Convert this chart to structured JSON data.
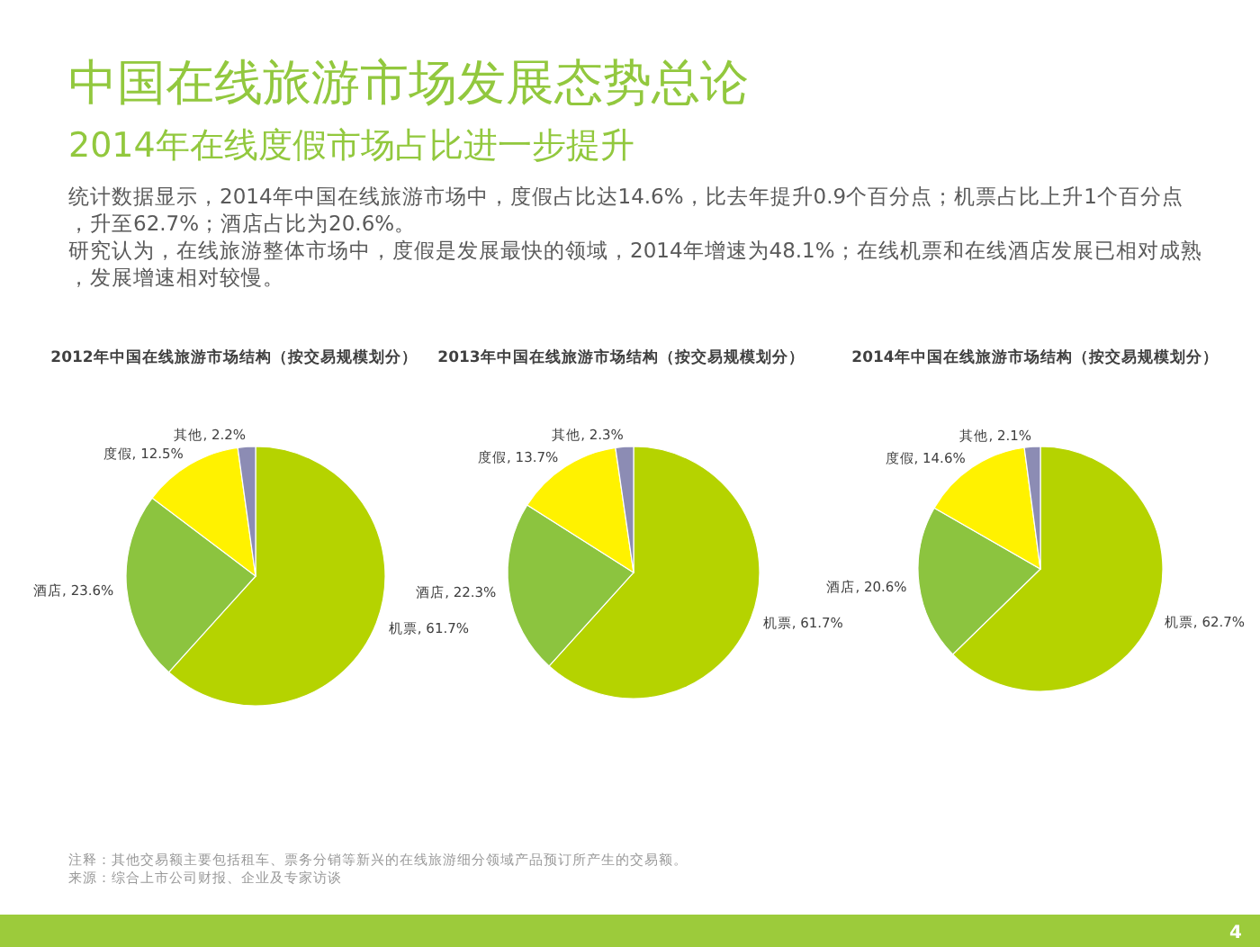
{
  "chart_data": [
    {
      "type": "other",
      "title": "中国在线旅游市场发展态势总论",
      "subtitle": "2014年在线度假市场占比进一步提升",
      "annotations": [
        "统计数据显示，2014年中国在线旅游市场中，度假占比达14.6%，比去年提升0.9个百分点；机票占比上升1个百分点，升至62.7%；酒店占比为20.6%。",
        "研究认为，在线旅游整体市场中，度假是发展最快的领域，2014年增速为48.1%；在线机票和在线酒店发展已相对成熟，发展增速相对较慢。",
        "注释：其他交易额主要包括租车、票务分销等新兴的在线旅游细分领域产品预订所产生的交易额。",
        "来源：综合上市公司财报、企业及专家访谈",
        "4"
      ]
    },
    {
      "type": "pie",
      "title": "2012年中国在线旅游市场结构（按交易规模划分）",
      "categories": [
        "机票",
        "酒店",
        "度假",
        "其他"
      ],
      "values": [
        61.7,
        23.6,
        12.5,
        2.2
      ],
      "value_labels": [
        ", 61.7%",
        ", 23.6%",
        ", 12.5%",
        ", 2.2%"
      ],
      "colors": [
        "#b5d300",
        "#8cc43f",
        "#fff200",
        "#8c8cb4"
      ]
    },
    {
      "type": "pie",
      "title": "2013年中国在线旅游市场结构（按交易规模划分）",
      "categories": [
        "机票",
        "酒店",
        "度假",
        "其他"
      ],
      "values": [
        61.7,
        22.3,
        13.7,
        2.3
      ],
      "value_labels": [
        ", 61.7%",
        ", 22.3%",
        ", 13.7%",
        ", 2.3%"
      ],
      "colors": [
        "#b5d300",
        "#8cc43f",
        "#fff200",
        "#8c8cb4"
      ]
    },
    {
      "type": "pie",
      "title": "2014年中国在线旅游市场结构（按交易规模划分）",
      "categories": [
        "机票",
        "酒店",
        "度假",
        "其他"
      ],
      "values": [
        62.7,
        20.6,
        14.6,
        2.1
      ],
      "value_labels": [
        ", 62.7%",
        ", 20.6%",
        ", 14.6%",
        ", 2.1%"
      ],
      "colors": [
        "#b5d300",
        "#8cc43f",
        "#fff200",
        "#8c8cb4"
      ]
    }
  ]
}
